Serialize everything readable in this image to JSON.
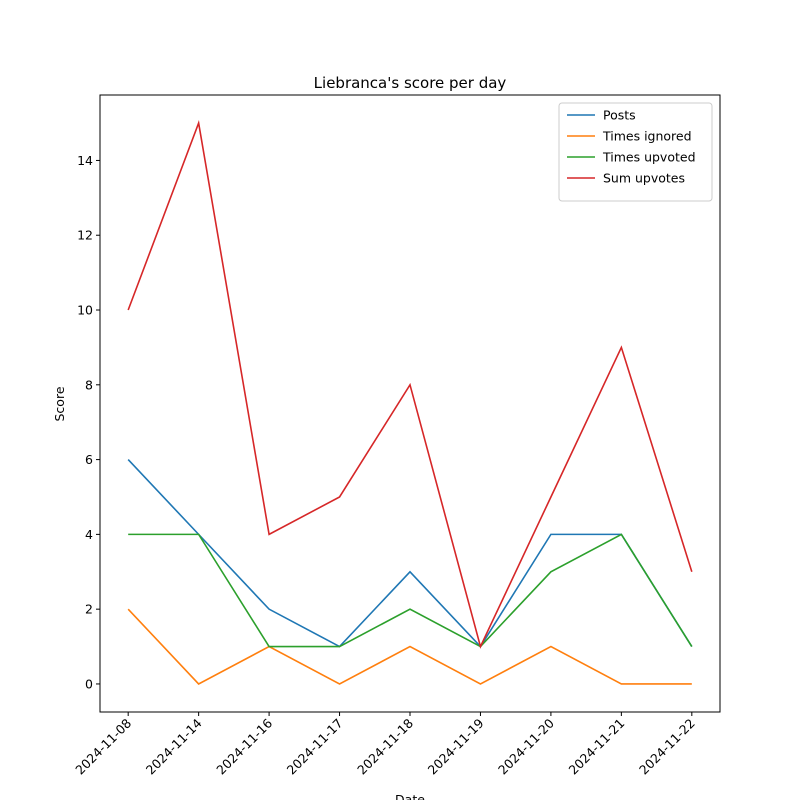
{
  "chart_data": {
    "type": "line",
    "title": "Liebranca's score per day",
    "xlabel": "Date",
    "ylabel": "Score",
    "categories": [
      "2024-11-08",
      "2024-11-14",
      "2024-11-16",
      "2024-11-17",
      "2024-11-18",
      "2024-11-19",
      "2024-11-20",
      "2024-11-21",
      "2024-11-22"
    ],
    "series": [
      {
        "name": "Posts",
        "color": "#1f77b4",
        "values": [
          6,
          4,
          2,
          1,
          3,
          1,
          4,
          4,
          1
        ]
      },
      {
        "name": "Times ignored",
        "color": "#ff7f0e",
        "values": [
          2,
          0,
          1,
          0,
          1,
          0,
          1,
          0,
          0
        ]
      },
      {
        "name": "Times upvoted",
        "color": "#2ca02c",
        "values": [
          4,
          4,
          1,
          1,
          2,
          1,
          3,
          4,
          1
        ]
      },
      {
        "name": "Sum upvotes",
        "color": "#d62728",
        "values": [
          10,
          15,
          4,
          5,
          8,
          1,
          5,
          9,
          3
        ]
      }
    ],
    "ylim": [
      -0.75,
      15.75
    ],
    "yticks": [
      0,
      2,
      4,
      6,
      8,
      10,
      12,
      14
    ],
    "grid": false,
    "legend": "upper right"
  }
}
